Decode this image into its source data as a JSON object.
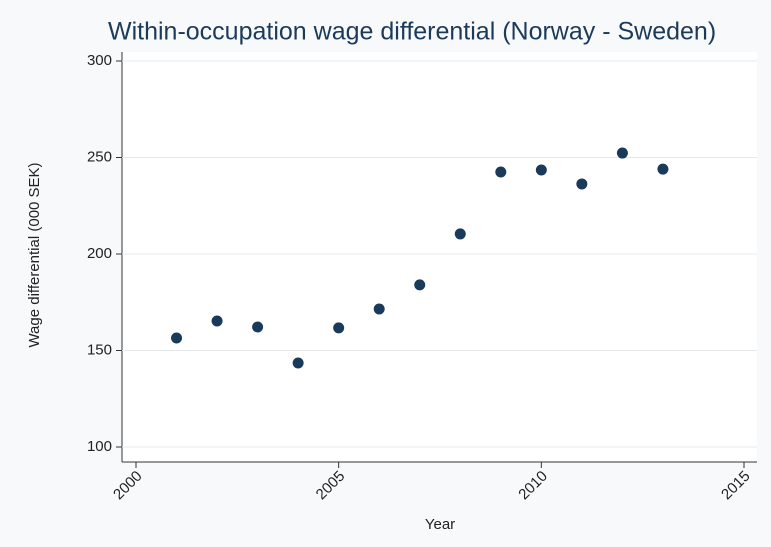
{
  "chart_data": {
    "type": "scatter",
    "title": "Within-occupation wage differential (Norway - Sweden)",
    "x_label": "Year",
    "y_label": "Wage differential (000 SEK)",
    "x": [
      2001,
      2002,
      2003,
      2004,
      2005,
      2006,
      2007,
      2008,
      2009,
      2010,
      2011,
      2012,
      2013
    ],
    "values": [
      156.5,
      165.3,
      162.2,
      143.5,
      161.7,
      171.5,
      184,
      210.4,
      242.5,
      243.5,
      236.3,
      252.3,
      244
    ],
    "color": "#1a3a5c",
    "xlim": [
      2000,
      2015
    ],
    "xticks": [
      2000,
      2005,
      2010,
      2015
    ],
    "ylim": [
      100,
      300
    ],
    "yticks": [
      100,
      150,
      200,
      250,
      300
    ],
    "grid": true
  }
}
